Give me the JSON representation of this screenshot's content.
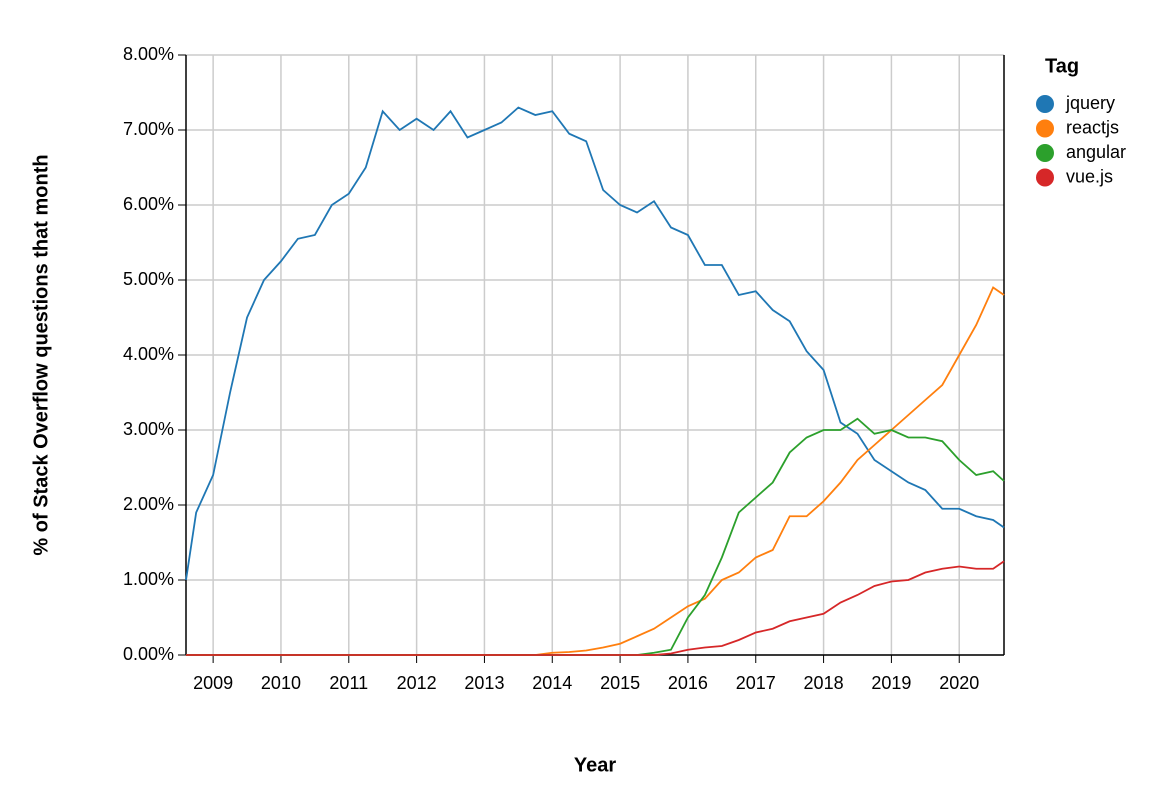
{
  "chart_data": {
    "type": "line",
    "x_label": "Year",
    "y_label": "% of Stack Overflow questions that month",
    "legend_title": "Tag",
    "legend_position": "right",
    "grid": true,
    "x": [
      2008.6,
      2008.75,
      2009,
      2009.25,
      2009.5,
      2009.75,
      2010,
      2010.25,
      2010.5,
      2010.75,
      2011,
      2011.25,
      2011.5,
      2011.75,
      2012,
      2012.25,
      2012.5,
      2012.75,
      2013,
      2013.25,
      2013.5,
      2013.75,
      2014,
      2014.25,
      2014.5,
      2014.75,
      2015,
      2015.25,
      2015.5,
      2015.75,
      2016,
      2016.25,
      2016.5,
      2016.75,
      2017,
      2017.25,
      2017.5,
      2017.75,
      2018,
      2018.25,
      2018.5,
      2018.75,
      2019,
      2019.25,
      2019.5,
      2019.75,
      2020,
      2020.25,
      2020.5,
      2020.66
    ],
    "xlim": [
      2008.6,
      2020.66
    ],
    "xticks": [
      2009,
      2010,
      2011,
      2012,
      2013,
      2014,
      2015,
      2016,
      2017,
      2018,
      2019,
      2020
    ],
    "ylim": [
      0,
      8
    ],
    "yticks": [
      {
        "value": 0,
        "label": "0.00%"
      },
      {
        "value": 1,
        "label": "1.00%"
      },
      {
        "value": 2,
        "label": "2.00%"
      },
      {
        "value": 3,
        "label": "3.00%"
      },
      {
        "value": 4,
        "label": "4.00%"
      },
      {
        "value": 5,
        "label": "5.00%"
      },
      {
        "value": 6,
        "label": "6.00%"
      },
      {
        "value": 7,
        "label": "7.00%"
      },
      {
        "value": 8,
        "label": "8.00%"
      }
    ],
    "series": [
      {
        "name": "jquery",
        "color": "#1f77b4",
        "values": [
          1.0,
          1.9,
          2.4,
          3.5,
          4.5,
          5.0,
          5.25,
          5.55,
          5.6,
          6.0,
          6.15,
          6.5,
          7.25,
          7.0,
          7.15,
          7.0,
          7.25,
          6.9,
          7.0,
          7.1,
          7.3,
          7.2,
          7.25,
          6.95,
          6.85,
          6.2,
          6.0,
          5.9,
          6.05,
          5.7,
          5.6,
          5.2,
          5.2,
          4.8,
          4.85,
          4.6,
          4.45,
          4.05,
          3.8,
          3.1,
          2.95,
          2.6,
          2.45,
          2.3,
          2.2,
          1.95,
          1.95,
          1.85,
          1.8,
          1.7
        ]
      },
      {
        "name": "reactjs",
        "color": "#ff7f0e",
        "values": [
          0,
          0,
          0,
          0,
          0,
          0,
          0,
          0,
          0,
          0,
          0,
          0,
          0,
          0,
          0,
          0,
          0,
          0,
          0,
          0,
          0,
          0,
          0.03,
          0.04,
          0.06,
          0.1,
          0.15,
          0.25,
          0.35,
          0.5,
          0.65,
          0.75,
          1.0,
          1.1,
          1.3,
          1.4,
          1.85,
          1.85,
          2.05,
          2.3,
          2.6,
          2.8,
          3.0,
          3.2,
          3.4,
          3.6,
          4.0,
          4.4,
          4.9,
          4.8
        ]
      },
      {
        "name": "angular",
        "color": "#2ca02c",
        "values": [
          0,
          0,
          0,
          0,
          0,
          0,
          0,
          0,
          0,
          0,
          0,
          0,
          0,
          0,
          0,
          0,
          0,
          0,
          0,
          0,
          0,
          0,
          0,
          0,
          0,
          0,
          0,
          0,
          0.03,
          0.07,
          0.5,
          0.8,
          1.3,
          1.9,
          2.1,
          2.3,
          2.7,
          2.9,
          3.0,
          3.0,
          3.15,
          2.95,
          3.0,
          2.9,
          2.9,
          2.85,
          2.6,
          2.4,
          2.45,
          2.32
        ]
      },
      {
        "name": "vue.js",
        "color": "#d62728",
        "values": [
          0,
          0,
          0,
          0,
          0,
          0,
          0,
          0,
          0,
          0,
          0,
          0,
          0,
          0,
          0,
          0,
          0,
          0,
          0,
          0,
          0,
          0,
          0,
          0,
          0,
          0,
          0,
          0,
          0,
          0.02,
          0.07,
          0.1,
          0.12,
          0.2,
          0.3,
          0.35,
          0.45,
          0.5,
          0.55,
          0.7,
          0.8,
          0.92,
          0.98,
          1.0,
          1.1,
          1.15,
          1.18,
          1.15,
          1.15,
          1.25
        ]
      }
    ]
  }
}
